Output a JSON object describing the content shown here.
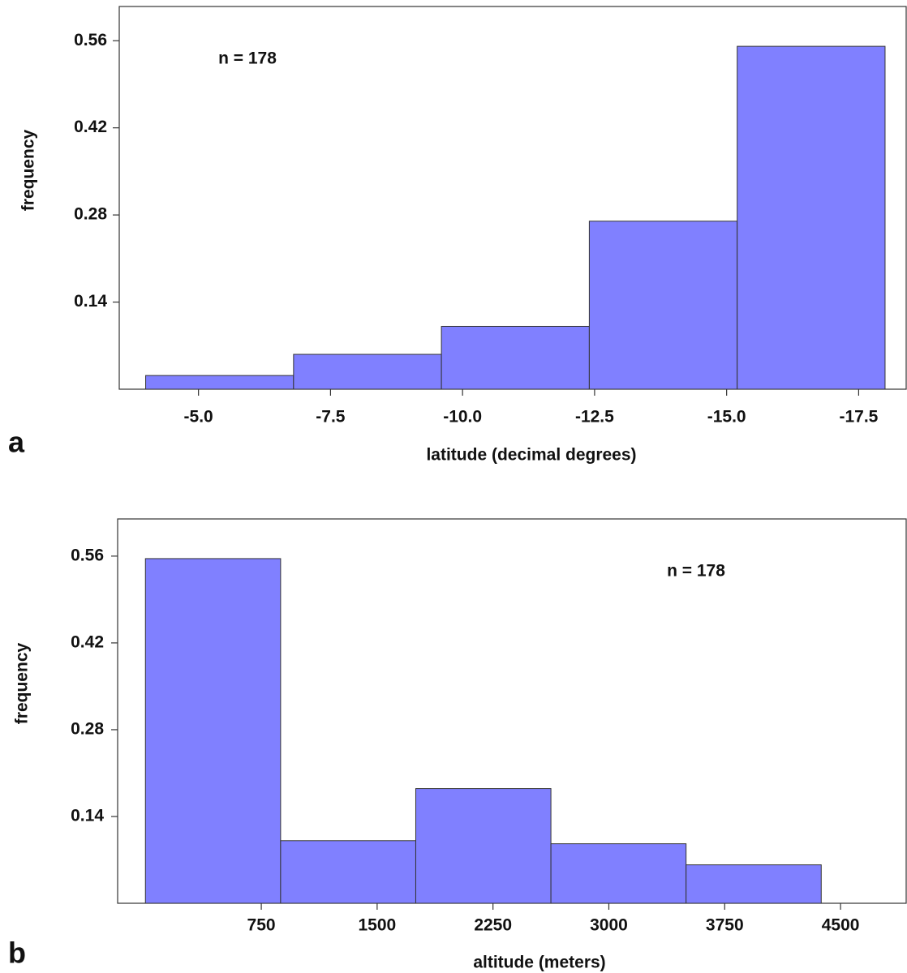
{
  "chart_data": [
    {
      "type": "histogram",
      "panel_label": "a",
      "annotation": "n = 178",
      "xlabel": "latitude (decimal degrees)",
      "ylabel": "frequency",
      "bins": [
        -4.0,
        -6.8,
        -9.6,
        -12.4,
        -15.2,
        -18.0
      ],
      "values": [
        0.022,
        0.056,
        0.101,
        0.27,
        0.551
      ],
      "color": "#8080ff",
      "xlim": [
        -3.5,
        -18.4
      ],
      "ylim": [
        0,
        0.615
      ],
      "xticks": [
        {
          "value": -5,
          "label": "-5.0"
        },
        -7.5,
        {
          "value": -10,
          "label": "-10.0"
        },
        -12.5,
        {
          "value": -15,
          "label": "-15.0"
        },
        -17.5
      ],
      "yticks": [
        0.14,
        0.28,
        0.42,
        0.56
      ]
    },
    {
      "type": "histogram",
      "panel_label": "b",
      "annotation": "n = 178",
      "xlabel": "altitude (meters)",
      "ylabel": "frequency",
      "bins": [
        0,
        875,
        1750,
        2625,
        3500,
        4375
      ],
      "values": [
        0.556,
        0.101,
        0.185,
        0.096,
        0.062
      ],
      "color": "#8080ff",
      "xlim": [
        -180,
        4925
      ],
      "ylim": [
        0,
        0.62
      ],
      "xticks": [
        750,
        1500,
        2250,
        3000,
        3750,
        4500
      ],
      "yticks": [
        0.14,
        0.28,
        0.42,
        0.56
      ]
    }
  ]
}
